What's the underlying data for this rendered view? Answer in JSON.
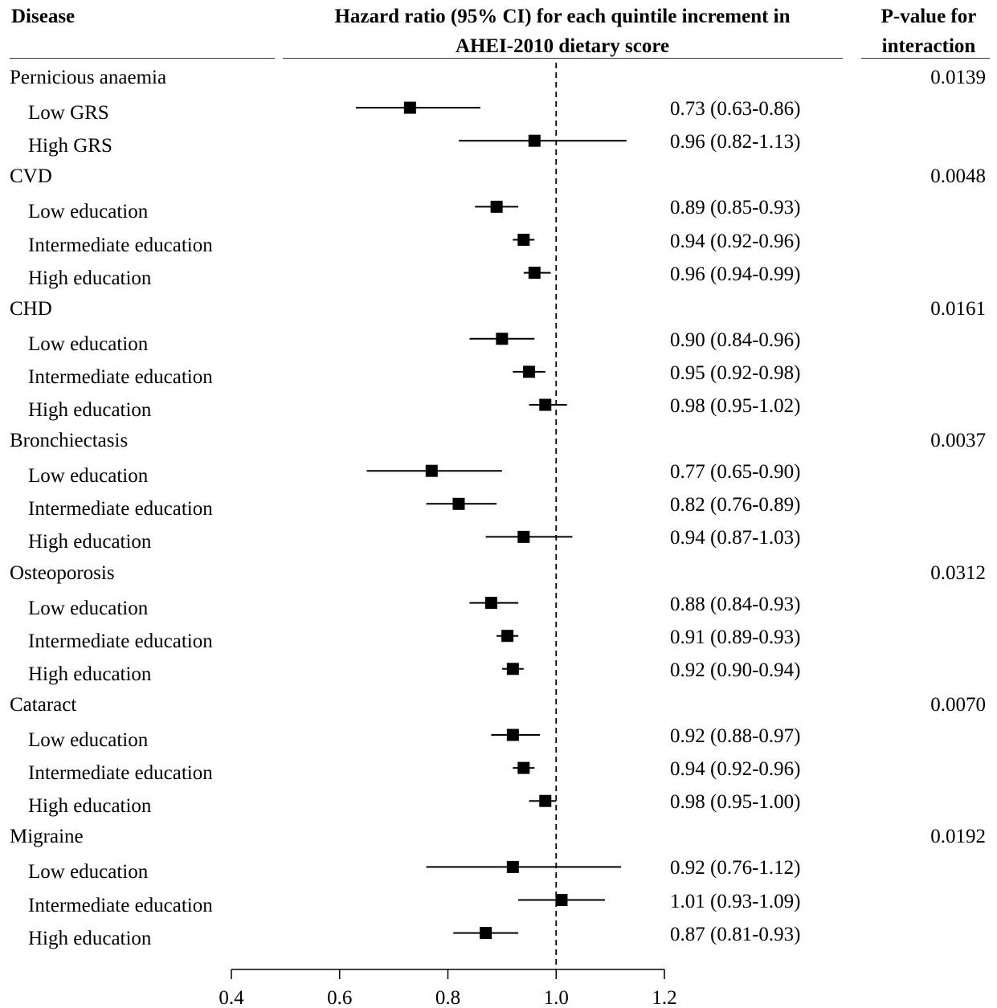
{
  "header": {
    "disease": "Disease",
    "hr_line1": "Hazard ratio (95% CI) for each quintile increment in",
    "hr_line2": "AHEI-2010 dietary score",
    "pval_line1": "P-value for",
    "pval_line2": "interaction"
  },
  "chart_data": {
    "type": "forest",
    "reference_line": 1.0,
    "xlim": [
      0.4,
      1.2
    ],
    "xticks": [
      "0.4",
      "0.6",
      "0.8",
      "1.0",
      "1.2"
    ],
    "groups": [
      {
        "disease": "Pernicious anaemia",
        "p_interaction": "0.0139",
        "rows": [
          {
            "label": "Low GRS",
            "hr": 0.73,
            "lo": 0.63,
            "hi": 0.86,
            "text": "0.73 (0.63-0.86)"
          },
          {
            "label": "High GRS",
            "hr": 0.96,
            "lo": 0.82,
            "hi": 1.13,
            "text": "0.96 (0.82-1.13)"
          }
        ]
      },
      {
        "disease": "CVD",
        "p_interaction": "0.0048",
        "rows": [
          {
            "label": "Low education",
            "hr": 0.89,
            "lo": 0.85,
            "hi": 0.93,
            "text": "0.89 (0.85-0.93)"
          },
          {
            "label": "Intermediate education",
            "hr": 0.94,
            "lo": 0.92,
            "hi": 0.96,
            "text": "0.94 (0.92-0.96)"
          },
          {
            "label": "High education",
            "hr": 0.96,
            "lo": 0.94,
            "hi": 0.99,
            "text": "0.96 (0.94-0.99)"
          }
        ]
      },
      {
        "disease": "CHD",
        "p_interaction": "0.0161",
        "rows": [
          {
            "label": "Low education",
            "hr": 0.9,
            "lo": 0.84,
            "hi": 0.96,
            "text": "0.90 (0.84-0.96)"
          },
          {
            "label": "Intermediate education",
            "hr": 0.95,
            "lo": 0.92,
            "hi": 0.98,
            "text": "0.95 (0.92-0.98)"
          },
          {
            "label": "High education",
            "hr": 0.98,
            "lo": 0.95,
            "hi": 1.02,
            "text": "0.98 (0.95-1.02)"
          }
        ]
      },
      {
        "disease": "Bronchiectasis",
        "p_interaction": "0.0037",
        "rows": [
          {
            "label": "Low education",
            "hr": 0.77,
            "lo": 0.65,
            "hi": 0.9,
            "text": "0.77 (0.65-0.90)"
          },
          {
            "label": "Intermediate education",
            "hr": 0.82,
            "lo": 0.76,
            "hi": 0.89,
            "text": "0.82 (0.76-0.89)"
          },
          {
            "label": "High education",
            "hr": 0.94,
            "lo": 0.87,
            "hi": 1.03,
            "text": "0.94 (0.87-1.03)"
          }
        ]
      },
      {
        "disease": "Osteoporosis",
        "p_interaction": "0.0312",
        "rows": [
          {
            "label": "Low education",
            "hr": 0.88,
            "lo": 0.84,
            "hi": 0.93,
            "text": "0.88 (0.84-0.93)"
          },
          {
            "label": "Intermediate education",
            "hr": 0.91,
            "lo": 0.89,
            "hi": 0.93,
            "text": "0.91 (0.89-0.93)"
          },
          {
            "label": "High education",
            "hr": 0.92,
            "lo": 0.9,
            "hi": 0.94,
            "text": "0.92 (0.90-0.94)"
          }
        ]
      },
      {
        "disease": "Cataract",
        "p_interaction": "0.0070",
        "rows": [
          {
            "label": "Low education",
            "hr": 0.92,
            "lo": 0.88,
            "hi": 0.97,
            "text": "0.92 (0.88-0.97)"
          },
          {
            "label": "Intermediate education",
            "hr": 0.94,
            "lo": 0.92,
            "hi": 0.96,
            "text": "0.94 (0.92-0.96)"
          },
          {
            "label": "High education",
            "hr": 0.98,
            "lo": 0.95,
            "hi": 1.0,
            "text": "0.98 (0.95-1.00)"
          }
        ]
      },
      {
        "disease": "Migraine",
        "p_interaction": "0.0192",
        "rows": [
          {
            "label": "Low education",
            "hr": 0.92,
            "lo": 0.76,
            "hi": 1.12,
            "text": "0.92 (0.76-1.12)"
          },
          {
            "label": "Intermediate education",
            "hr": 1.01,
            "lo": 0.93,
            "hi": 1.09,
            "text": "1.01 (0.93-1.09)"
          },
          {
            "label": "High education",
            "hr": 0.87,
            "lo": 0.81,
            "hi": 0.93,
            "text": "0.87 (0.81-0.93)"
          }
        ]
      }
    ]
  }
}
